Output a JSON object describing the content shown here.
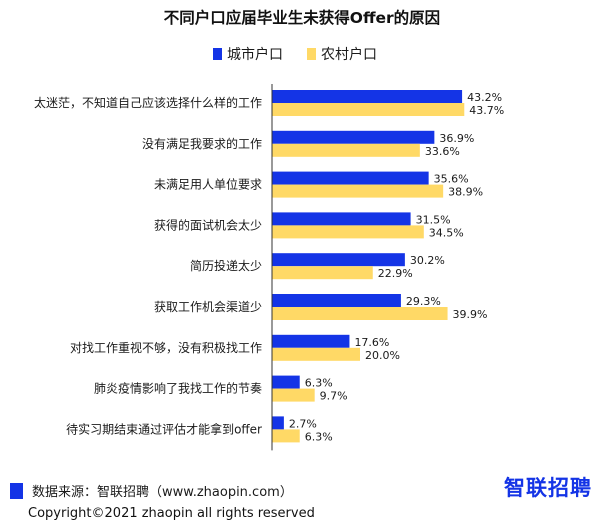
{
  "chart_data": {
    "type": "bar",
    "orientation": "horizontal",
    "title": "不同户口应届毕业生未获得Offer的原因",
    "categories": [
      "太迷茫，不知道自己应该选择什么样的工作",
      "没有满足我要求的工作",
      "未满足用人单位要求",
      "获得的面试机会太少",
      "简历投递太少",
      "获取工作机会渠道少",
      "对找工作重视不够，没有积极找工作",
      "肺炎疫情影响了我找工作的节奏",
      "待实习期结束通过评估才能拿到offer"
    ],
    "series": [
      {
        "name": "城市户口",
        "color": "#1434e6",
        "values": [
          43.2,
          36.9,
          35.6,
          31.5,
          30.2,
          29.3,
          17.6,
          6.3,
          2.7
        ],
        "labels": [
          "43.2%",
          "36.9%",
          "35.6%",
          "31.5%",
          "30.2%",
          "29.3%",
          "17.6%",
          "6.3%",
          "2.7%"
        ]
      },
      {
        "name": "农村户口",
        "color": "#ffd966",
        "values": [
          43.7,
          33.6,
          38.9,
          34.5,
          22.9,
          39.9,
          20.0,
          9.7,
          6.3
        ],
        "labels": [
          "43.7%",
          "33.6%",
          "38.9%",
          "34.5%",
          "22.9%",
          "39.9%",
          "20.0%",
          "9.7%",
          "6.3%"
        ]
      }
    ],
    "legend_position": "top",
    "grid": false
  },
  "footer": {
    "source": "数据来源：智联招聘（www.zhaopin.com）",
    "copyright": "Copyright©2021 zhaopin all rights reserved",
    "logo_text": "智联招聘"
  }
}
